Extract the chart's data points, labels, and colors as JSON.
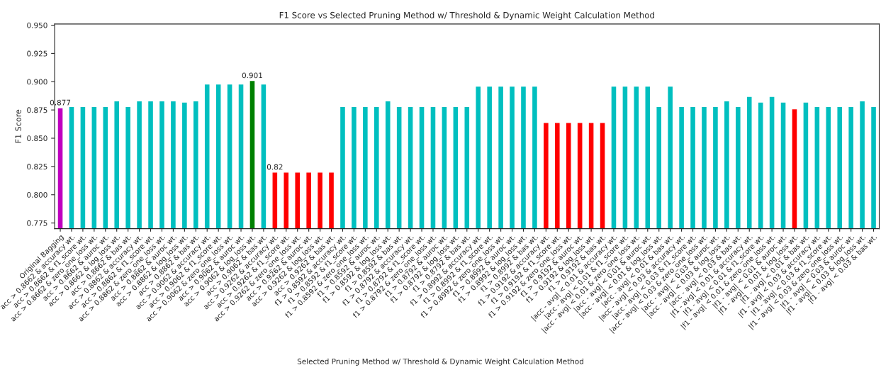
{
  "chart_data": {
    "type": "bar",
    "title": "F1 Score vs Selected Pruning Method w/ Threshold & Dynamic Weight Calculation Method",
    "xlabel": "Selected Pruning Method w/ Threshold & Dynamic Weight Calculation Method",
    "ylabel": "F1 Score",
    "categories": [
      "Original Bagging",
      "acc > 0.8662 & accuracy wt.",
      "acc > 0.8662 & f1_score wt.",
      "acc > 0.8662 & zero_one_loss wt.",
      "acc > 0.8662 & auroc wt.",
      "acc > 0.8662 & log_loss wt.",
      "acc > 0.8662 & bas wt.",
      "acc > 0.8862 & accuracy wt.",
      "acc > 0.8862 & f1_score wt.",
      "acc > 0.8862 & zero_one_loss wt.",
      "acc > 0.8862 & auroc wt.",
      "acc > 0.8862 & log_loss wt.",
      "acc > 0.8862 & bas wt.",
      "acc > 0.9062 & accuracy wt.",
      "acc > 0.9062 & f1_score wt.",
      "acc > 0.9062 & zero_one_loss wt.",
      "acc > 0.9062 & auroc wt.",
      "acc > 0.9062 & log_loss wt.",
      "acc > 0.9062 & bas wt.",
      "acc > 0.9262 & accuracy wt.",
      "acc > 0.9262 & f1_score wt.",
      "acc > 0.9262 & zero_one_loss wt.",
      "acc > 0.9262 & auroc wt.",
      "acc > 0.9262 & log_loss wt.",
      "acc > 0.9262 & bas wt.",
      "f1 > 0.8592 & accuracy wt.",
      "f1 > 0.8592 & f1_score wt.",
      "f1 > 0.8592 & zero_one_loss wt.",
      "f1 > 0.8592 & auroc wt.",
      "f1 > 0.8592 & log_loss wt.",
      "f1 > 0.8592 & bas wt.",
      "f1 > 0.8792 & accuracy wt.",
      "f1 > 0.8792 & f1_score wt.",
      "f1 > 0.8792 & zero_one_loss wt.",
      "f1 > 0.8792 & auroc wt.",
      "f1 > 0.8792 & log_loss wt.",
      "f1 > 0.8792 & bas wt.",
      "f1 > 0.8992 & accuracy wt.",
      "f1 > 0.8992 & f1_score wt.",
      "f1 > 0.8992 & zero_one_loss wt.",
      "f1 > 0.8992 & auroc wt.",
      "f1 > 0.8992 & log_loss wt.",
      "f1 > 0.8992 & bas wt.",
      "f1 > 0.9192 & accuracy wt.",
      "f1 > 0.9192 & f1_score wt.",
      "f1 > 0.9192 & zero_one_loss wt.",
      "f1 > 0.9192 & auroc wt.",
      "f1 > 0.9192 & log_loss wt.",
      "f1 > 0.9192 & bas wt.",
      "|acc - avg| < 0.01 & accuracy wt.",
      "|acc - avg| < 0.01 & f1_score wt.",
      "|acc - avg| < 0.01 & zero_one_loss wt.",
      "|acc - avg| < 0.01 & auroc wt.",
      "|acc - avg| < 0.01 & log_loss wt.",
      "|acc - avg| < 0.01 & bas wt.",
      "|acc - avg| < 0.03 & accuracy wt.",
      "|acc - avg| < 0.03 & f1_score wt.",
      "|acc - avg| < 0.03 & zero_one_loss wt.",
      "|acc - avg| < 0.03 & auroc wt.",
      "|acc - avg| < 0.03 & log_loss wt.",
      "|acc - avg| < 0.03 & bas wt.",
      "|f1 - avg| < 0.01 & accuracy wt.",
      "|f1 - avg| < 0.01 & f1_score wt.",
      "|f1 - avg| < 0.01 & zero_one_loss wt.",
      "|f1 - avg| < 0.01 & auroc wt.",
      "|f1 - avg| < 0.01 & log_loss wt.",
      "|f1 - avg| < 0.01 & bas wt.",
      "|f1 - avg| < 0.03 & accuracy wt.",
      "|f1 - avg| < 0.03 & f1_score wt.",
      "|f1 - avg| < 0.03 & zero_one_loss wt.",
      "|f1 - avg| < 0.03 & auroc wt.",
      "|f1 - avg| < 0.03 & log_loss wt.",
      "|f1 - avg| < 0.03 & bas wt."
    ],
    "values": [
      0.877,
      0.878,
      0.878,
      0.878,
      0.878,
      0.883,
      0.878,
      0.883,
      0.883,
      0.883,
      0.883,
      0.882,
      0.883,
      0.898,
      0.898,
      0.898,
      0.898,
      0.901,
      0.898,
      0.82,
      0.82,
      0.82,
      0.82,
      0.82,
      0.82,
      0.878,
      0.878,
      0.878,
      0.878,
      0.883,
      0.878,
      0.878,
      0.878,
      0.878,
      0.878,
      0.878,
      0.878,
      0.896,
      0.896,
      0.896,
      0.896,
      0.896,
      0.896,
      0.864,
      0.864,
      0.864,
      0.864,
      0.864,
      0.864,
      0.896,
      0.896,
      0.896,
      0.896,
      0.878,
      0.896,
      0.878,
      0.878,
      0.878,
      0.878,
      0.883,
      0.878,
      0.887,
      0.882,
      0.887,
      0.882,
      0.876,
      0.882,
      0.878,
      0.878,
      0.878,
      0.878,
      0.883,
      0.878
    ],
    "colors": [
      "#bf00bf",
      "#00bfbf",
      "#00bfbf",
      "#00bfbf",
      "#00bfbf",
      "#00bfbf",
      "#00bfbf",
      "#00bfbf",
      "#00bfbf",
      "#00bfbf",
      "#00bfbf",
      "#00bfbf",
      "#00bfbf",
      "#00bfbf",
      "#00bfbf",
      "#00bfbf",
      "#00bfbf",
      "#008000",
      "#00bfbf",
      "#ff0000",
      "#ff0000",
      "#ff0000",
      "#ff0000",
      "#ff0000",
      "#ff0000",
      "#00bfbf",
      "#00bfbf",
      "#00bfbf",
      "#00bfbf",
      "#00bfbf",
      "#00bfbf",
      "#00bfbf",
      "#00bfbf",
      "#00bfbf",
      "#00bfbf",
      "#00bfbf",
      "#00bfbf",
      "#00bfbf",
      "#00bfbf",
      "#00bfbf",
      "#00bfbf",
      "#00bfbf",
      "#00bfbf",
      "#ff0000",
      "#ff0000",
      "#ff0000",
      "#ff0000",
      "#ff0000",
      "#ff0000",
      "#00bfbf",
      "#00bfbf",
      "#00bfbf",
      "#00bfbf",
      "#00bfbf",
      "#00bfbf",
      "#00bfbf",
      "#00bfbf",
      "#00bfbf",
      "#00bfbf",
      "#00bfbf",
      "#00bfbf",
      "#00bfbf",
      "#00bfbf",
      "#00bfbf",
      "#00bfbf",
      "#ff0000",
      "#00bfbf",
      "#00bfbf",
      "#00bfbf",
      "#00bfbf",
      "#00bfbf",
      "#00bfbf",
      "#00bfbf"
    ],
    "value_labels": [
      "0.877",
      null,
      null,
      null,
      null,
      null,
      null,
      null,
      null,
      null,
      null,
      null,
      null,
      null,
      null,
      null,
      null,
      "0.901",
      null,
      "0.82",
      null,
      null,
      null,
      null,
      null,
      null,
      null,
      null,
      null,
      null,
      null,
      null,
      null,
      null,
      null,
      null,
      null,
      null,
      null,
      null,
      null,
      null,
      null,
      null,
      null,
      null,
      null,
      null,
      null,
      null,
      null,
      null,
      null,
      null,
      null,
      null,
      null,
      null,
      null,
      null,
      null,
      null,
      null,
      null,
      null,
      null,
      null,
      null,
      null,
      null,
      null,
      null,
      null
    ],
    "ylim": [
      0.77,
      0.951
    ],
    "yticks": [
      {
        "value": 0.775,
        "label": "0.775"
      },
      {
        "value": 0.8,
        "label": "0.800"
      },
      {
        "value": 0.825,
        "label": "0.825"
      },
      {
        "value": 0.85,
        "label": "0.850"
      },
      {
        "value": 0.875,
        "label": "0.875"
      },
      {
        "value": 0.9,
        "label": "0.900"
      },
      {
        "value": 0.925,
        "label": "0.925"
      },
      {
        "value": 0.95,
        "label": "0.950"
      }
    ],
    "grid": false
  }
}
